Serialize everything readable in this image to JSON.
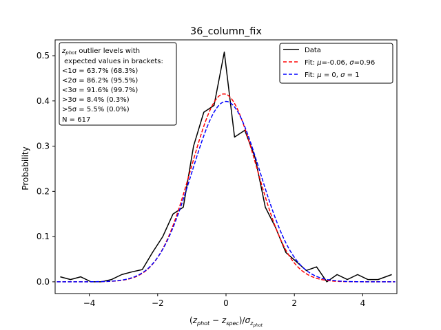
{
  "chart_data": {
    "type": "line",
    "title": "36_column_fix",
    "xlabel": "(z_phot − z_spec)/σ_z_phot",
    "ylabel": "Probability",
    "xlim": [
      -5,
      5
    ],
    "ylim": [
      -0.026,
      0.535
    ],
    "xticks": [
      -4,
      -2,
      0,
      2,
      4
    ],
    "yticks": [
      0.0,
      0.1,
      0.2,
      0.3,
      0.4,
      0.5
    ],
    "xtick_labels": [
      "−4",
      "−2",
      "0",
      "2",
      "4"
    ],
    "ytick_labels": [
      "0.0",
      "0.1",
      "0.2",
      "0.3",
      "0.4",
      "0.5"
    ],
    "grid": false,
    "legend_position": "top-right",
    "series": [
      {
        "name": "Data",
        "color": "#000000",
        "dash": "solid",
        "x": [
          -4.85,
          -4.55,
          -4.25,
          -3.95,
          -3.65,
          -3.35,
          -3.05,
          -2.75,
          -2.45,
          -2.15,
          -1.85,
          -1.55,
          -1.25,
          -0.95,
          -0.65,
          -0.35,
          -0.05,
          0.25,
          0.55,
          0.85,
          1.15,
          1.45,
          1.75,
          2.05,
          2.35,
          2.65,
          2.95,
          3.25,
          3.55,
          3.85,
          4.15,
          4.45,
          4.85
        ],
        "values": [
          0.011,
          0.005,
          0.011,
          0.0,
          0.0,
          0.005,
          0.016,
          0.022,
          0.027,
          0.065,
          0.1,
          0.15,
          0.165,
          0.3,
          0.375,
          0.39,
          0.508,
          0.32,
          0.335,
          0.275,
          0.165,
          0.12,
          0.065,
          0.045,
          0.025,
          0.033,
          0.0,
          0.016,
          0.005,
          0.016,
          0.005,
          0.005,
          0.016
        ]
      },
      {
        "name": "Fit: μ=-0.06, σ=0.96",
        "color": "#ff0000",
        "dash": "dashed",
        "gaussian": {
          "mu": -0.06,
          "sigma": 0.96
        }
      },
      {
        "name": "Fit: μ=0, σ=1",
        "color": "#0000ff",
        "dash": "dashed",
        "gaussian": {
          "mu": 0,
          "sigma": 1
        }
      }
    ],
    "annotation_lines": [
      "z_phot outlier levels with",
      " expected values in brackets:",
      "<1σ = 63.7% (68.3%)",
      "<2σ = 86.2% (95.5%)",
      "<3σ = 91.6% (99.7%)",
      ">3σ = 8.4% (0.3%)",
      ">5σ = 5.5% (0.0%)",
      "N = 617"
    ]
  }
}
